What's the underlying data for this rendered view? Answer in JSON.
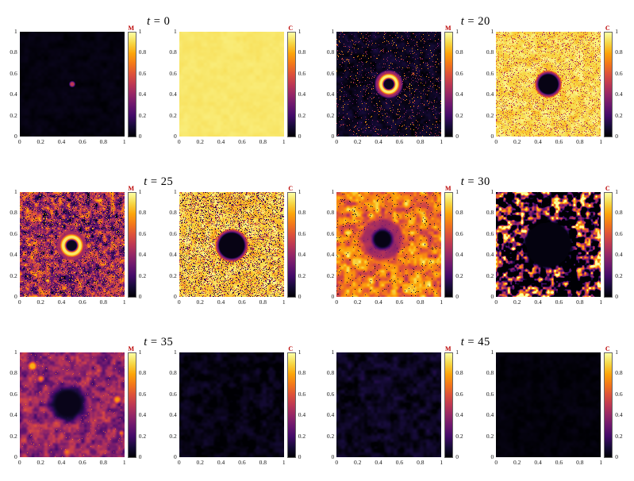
{
  "chart_data": {
    "type": "heatmap",
    "layout": "3 rows x 2 columns of panel pairs; each pair shows field M (left) and field C (right) with its own colorbar",
    "xlabel": "",
    "ylabel": "",
    "axis_range": [
      0,
      1
    ],
    "value_range": [
      0,
      1
    ],
    "axis_ticks": [
      "0",
      "0.2",
      "0.4",
      "0.6",
      "0.8",
      "1"
    ],
    "colorbar_ticks": [
      "0",
      "0.2",
      "0.4",
      "0.6",
      "0.8",
      "1"
    ],
    "colormap_name": "inferno",
    "colormap": [
      "#000004",
      "#160b39",
      "#420a68",
      "#6a176e",
      "#932667",
      "#bc3754",
      "#dd513a",
      "#f37819",
      "#fca50a",
      "#f6d746",
      "#fcffa4"
    ],
    "colorbar_label_color": "#bb0000",
    "panels": [
      {
        "title_var": "t",
        "title_rest": " = 0",
        "time": 0,
        "fields": [
          {
            "label": "M",
            "description": "Nearly black field with a tiny purple seed of M at the centre (0.5, 0.5).",
            "base": 0.02,
            "noise_amp": 0.015,
            "noise_scale": 16,
            "center": [
              0.5,
              0.5
            ],
            "soft": 0.012,
            "bands": [
              {
                "r": 0.024,
                "v": 0.5
              }
            ]
          },
          {
            "label": "C",
            "description": "Uniform bright yellow field, C ~ 1 everywhere.",
            "base": 0.94,
            "noise_amp": 0.01,
            "noise_scale": 16
          }
        ]
      },
      {
        "title_var": "t",
        "title_rest": " = 20",
        "time": 20,
        "fields": [
          {
            "label": "M",
            "description": "Dark field with sparse bright speckles; bright yellow ring of M around a dark core at the centre, ringed by purple.",
            "base": 0.05,
            "noise_amp": 0.04,
            "noise_scale": 22,
            "speckle_p": 0.06,
            "speckle_lo": 0.15,
            "speckle_hi": 0.85,
            "center": [
              0.5,
              0.5
            ],
            "soft": 0.014,
            "bands": [
              {
                "r": 0.055,
                "v": 0.05
              },
              {
                "r": 0.095,
                "v": 0.95
              },
              {
                "r": 0.128,
                "v": 0.45,
                "blend": 0.92
              }
            ]
          },
          {
            "label": "C",
            "description": "Yellow field (C ~ 1) with speckle noise and a dark circular hole of consumed C at the centre, rimmed in purple.",
            "base": 0.92,
            "noise_amp": 0.05,
            "noise_scale": 22,
            "speckle_p": 0.17,
            "speckle_lo": 0.35,
            "speckle_hi": 0.85,
            "center": [
              0.5,
              0.5
            ],
            "soft": 0.013,
            "bands": [
              {
                "r": 0.1,
                "v": 0.03
              },
              {
                "r": 0.124,
                "v": 0.42
              }
            ]
          }
        ]
      },
      {
        "title_var": "t",
        "title_rest": " = 25",
        "time": 25,
        "fields": [
          {
            "label": "M",
            "description": "Grainy red-purple field of spreading M; bright yellow ring around a dark core at the centre with a purple halo.",
            "base": 0.42,
            "noise_amp": 0.3,
            "noise_scale": 26,
            "speckle_p": 0.28,
            "speckle_lo": 0.0,
            "speckle_hi": 0.85,
            "center": [
              0.495,
              0.49
            ],
            "soft": 0.016,
            "bands": [
              {
                "r": 0.058,
                "v": 0.05
              },
              {
                "r": 0.103,
                "v": 0.94
              },
              {
                "r": 0.142,
                "v": 0.45,
                "blend": 0.9
              }
            ]
          },
          {
            "label": "C",
            "description": "Yellow field heavily speckled with dark noise; the central dark disc of depleted C has grown, rimmed in purple.",
            "base": 0.9,
            "noise_amp": 0.06,
            "noise_scale": 22,
            "speckle_p": 0.3,
            "speckle_lo": 0.0,
            "speckle_hi": 0.8,
            "center": [
              0.5,
              0.49
            ],
            "soft": 0.014,
            "bands": [
              {
                "r": 0.128,
                "v": 0.03
              },
              {
                "r": 0.152,
                "v": 0.42
              }
            ]
          }
        ]
      },
      {
        "title_var": "t",
        "title_rest": " = 30",
        "time": 30,
        "fields": [
          {
            "label": "M",
            "description": "Bright orange turbulent field of M with scattered dark dots; purple halo around a dark depleted core left of centre.",
            "base": 0.72,
            "noise_amp": 0.17,
            "noise_scale": 18,
            "speckle_p": 0.025,
            "speckle_lo": 0.0,
            "speckle_hi": 0.2,
            "center": [
              0.44,
              0.55
            ],
            "soft": 0.03,
            "bands": [
              {
                "r": 0.095,
                "v": 0.03
              },
              {
                "r": 0.2,
                "v": 0.36,
                "blend": 0.78
              }
            ]
          },
          {
            "label": "C",
            "description": "Mostly dark field with web-like orange and yellow patches of remaining C; large black hole at the centre.",
            "base": 0.3,
            "noise_amp": 0.5,
            "noise_scale": 24,
            "contrast": 1.7,
            "center": [
              0.5,
              0.5
            ],
            "soft": 0.03,
            "bands": [
              {
                "r": 0.235,
                "v": 0.02
              }
            ]
          }
        ]
      },
      {
        "title_var": "t",
        "title_rest": " = 35",
        "time": 35,
        "fields": [
          {
            "label": "M",
            "description": "Purple mottled field of decaying M with a few orange hot spots and a soft large dark blob at the centre.",
            "base": 0.4,
            "noise_amp": 0.13,
            "noise_scale": 20,
            "speckle_p": 0.012,
            "speckle_lo": 0.5,
            "speckle_hi": 0.72,
            "center": [
              0.46,
              0.51
            ],
            "soft": 0.06,
            "bands": [
              {
                "r": 0.165,
                "v": 0.04
              }
            ],
            "spots": [
              {
                "x": 0.12,
                "y": 0.87,
                "r": 0.035,
                "v": 0.82
              },
              {
                "x": 0.2,
                "y": 0.75,
                "r": 0.022,
                "v": 0.72
              },
              {
                "x": 0.93,
                "y": 0.55,
                "r": 0.028,
                "v": 0.78
              },
              {
                "x": 0.45,
                "y": 0.05,
                "r": 0.02,
                "v": 0.7
              },
              {
                "x": 0.97,
                "y": 0.23,
                "r": 0.018,
                "v": 0.7
              }
            ]
          },
          {
            "label": "C",
            "description": "Almost completely black field; C nearly exhausted with faint purple traces.",
            "base": 0.03,
            "noise_amp": 0.04,
            "noise_scale": 16
          }
        ]
      },
      {
        "title_var": "t",
        "title_rest": " = 45",
        "time": 45,
        "fields": [
          {
            "label": "M",
            "description": "Nearly black field with faint dark-purple mottling; M has decayed almost everywhere.",
            "base": 0.05,
            "noise_amp": 0.05,
            "noise_scale": 16
          },
          {
            "label": "C",
            "description": "Completely black field; C fully consumed.",
            "base": 0.012,
            "noise_amp": 0.015,
            "noise_scale": 16
          }
        ]
      }
    ]
  }
}
